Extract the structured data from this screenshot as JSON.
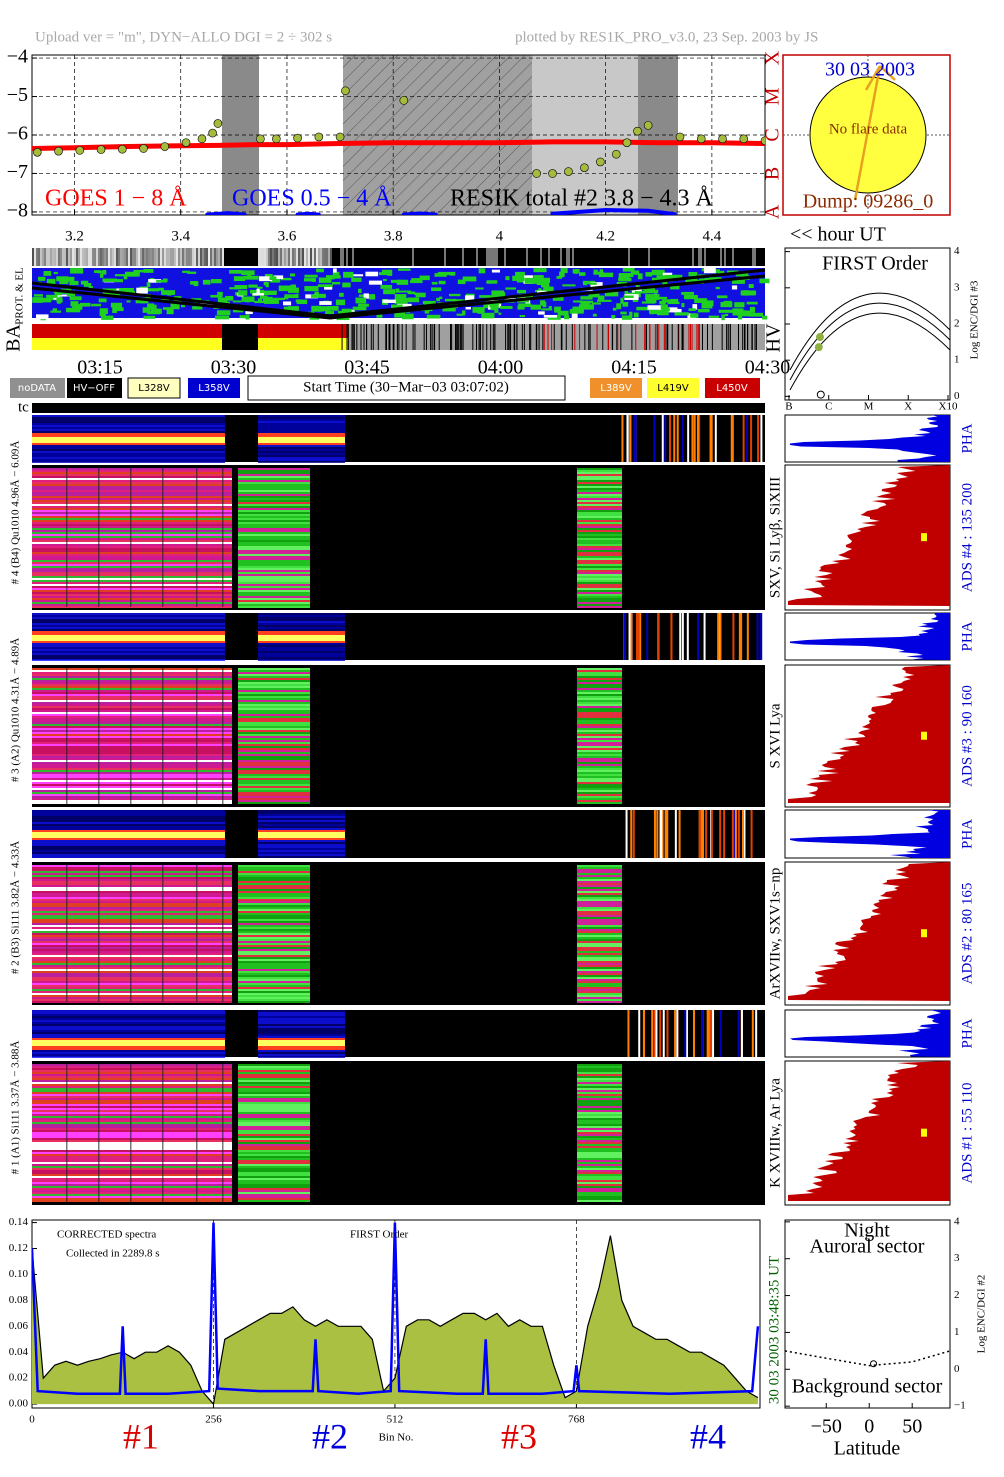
{
  "header": {
    "left": "Upload ver = \"m\", DYN−ALLO DGI =   2 ÷ 302 s",
    "right": "plotted by RES1K_PRO_v3.0, 23 Sep. 2003 by JS"
  },
  "sun": {
    "date": "30 03 2003",
    "note": "No flare data",
    "dump": "Dump: 09286_0"
  },
  "orbit": {
    "unit_label": "<< hour UT",
    "prot_label": "PROT. & EL",
    "ba_label": "BA",
    "hv_label": "HV",
    "tc_label": "tc",
    "time_labels": [
      "03:15",
      "03:30",
      "03:45",
      "04:00",
      "04:15",
      "04:30"
    ]
  },
  "controls": {
    "nodata": "noDATA",
    "hv_off": "HV−OFF",
    "l328": "L328V",
    "l358": "L358V",
    "start_time": "Start Time (30−Mar−03 03:07:02)",
    "l389": "L389V",
    "l419": "L419V",
    "l450": "L450V"
  },
  "panels": [
    {
      "left_label": "# 4 (B4) Qu1010 4.96Å − 6.09Å",
      "side_label": "SXV, Si Lyβ, SiXIII",
      "pha_label": "PHA",
      "ads_label": "ADS #4 :   135 200"
    },
    {
      "left_label": "# 3 (A2) Qu1010  4.31Å − 4.89Å",
      "side_label": "S XVI Lya",
      "pha_label": "PHA",
      "ads_label": "ADS #3 :    90 160"
    },
    {
      "left_label": "# 2 (B3) Si111  3.82Å − 4.33Å",
      "side_label": "ArXVIIw, SXV1s−np",
      "pha_label": "PHA",
      "ads_label": "ADS #2 :    80 165"
    },
    {
      "left_label": "# 1 (A1) Si111  3.37Å − 3.88Å",
      "side_label": "K XVIIIw, Ar Lya",
      "pha_label": "PHA",
      "ads_label": "ADS #1 :    55 110"
    }
  ],
  "chart_data": [
    {
      "type": "line",
      "grid": true,
      "xlim": [
        3.12,
        4.5
      ],
      "xticks": [
        3.2,
        3.4,
        3.6,
        3.8,
        4.0,
        4.2,
        4.4
      ],
      "ylim": [
        -8.08,
        -3.92
      ],
      "yticks": [
        {
          "value": -4,
          "label": "−4"
        },
        {
          "value": -5,
          "label": "−5"
        },
        {
          "value": -6,
          "label": "−6"
        },
        {
          "value": -7,
          "label": "−7"
        },
        {
          "value": -8,
          "label": "−8"
        }
      ],
      "y2lim": [
        -8.08,
        -3.92
      ],
      "y2ticks": [
        {
          "value": -8,
          "label": "A"
        },
        {
          "value": -7,
          "label": "B"
        },
        {
          "value": -6,
          "label": "C"
        },
        {
          "value": -5,
          "label": "M"
        },
        {
          "value": -4,
          "label": "X"
        }
      ],
      "series": [
        {
          "name": "GOES 1 − 8 Å",
          "color": "#ff0000",
          "mark": "line",
          "x": [
            3.12,
            3.2,
            3.3,
            3.4,
            3.47,
            3.54,
            3.6,
            3.7,
            3.8,
            3.9,
            4.0,
            4.1,
            4.2,
            4.3,
            4.4,
            4.5
          ],
          "values": [
            -6.35,
            -6.33,
            -6.3,
            -6.28,
            -6.27,
            -6.25,
            -6.25,
            -6.22,
            -6.2,
            -6.2,
            -6.2,
            -6.18,
            -6.18,
            -6.2,
            -6.2,
            -6.22
          ]
        },
        {
          "name": "GOES 0.5 − 4 Å",
          "color": "#0000ff",
          "mark": "line",
          "x": [
            3.45,
            3.49,
            3.52,
            3.53,
            3.62,
            3.64,
            3.66,
            3.67,
            3.82,
            3.85,
            3.88,
            3.89,
            4.1,
            4.2,
            4.28,
            4.33
          ],
          "values": [
            -8.07,
            -8.03,
            -8.07,
            null,
            -8.07,
            -8.05,
            -8.07,
            null,
            -8.07,
            -8.04,
            -8.07,
            null,
            -8.05,
            -7.95,
            -7.97,
            -8.06
          ]
        },
        {
          "name": "RESIK total #2  3.8 − 4.3 Å",
          "color": "#000000",
          "fill": "#a4bb3c",
          "mark": "dots",
          "x": [
            3.13,
            3.17,
            3.21,
            3.25,
            3.29,
            3.33,
            3.37,
            3.41,
            3.44,
            3.46,
            3.47,
            3.55,
            3.58,
            3.62,
            3.66,
            3.7,
            3.71,
            3.82,
            4.07,
            4.1,
            4.13,
            4.16,
            4.19,
            4.22,
            4.24,
            4.26,
            4.28,
            4.34,
            4.38,
            4.42,
            4.46,
            4.5
          ],
          "values": [
            -6.45,
            -6.42,
            -6.4,
            -6.38,
            -6.37,
            -6.35,
            -6.3,
            -6.2,
            -6.1,
            -5.95,
            -5.7,
            -6.1,
            -6.1,
            -6.08,
            -6.05,
            -6.05,
            -4.85,
            -5.1,
            -7.0,
            -7.0,
            -6.95,
            -6.85,
            -6.7,
            -6.5,
            -6.2,
            -5.9,
            -5.75,
            -6.05,
            -6.1,
            -6.1,
            -6.1,
            -6.15
          ]
        }
      ]
    },
    {
      "type": "scatter",
      "title": "FIRST Order",
      "y_label": "Log ENC/DGI #3",
      "xlim": [
        -0.1,
        4.05
      ],
      "xticks": [
        {
          "value": 0,
          "label": "B"
        },
        {
          "value": 1,
          "label": "C"
        },
        {
          "value": 2,
          "label": "M"
        },
        {
          "value": 3,
          "label": "X"
        },
        {
          "value": 4,
          "label": "X10"
        }
      ],
      "ylim": [
        -0.1,
        4.1
      ],
      "yticks": [
        0,
        1,
        2,
        3,
        4
      ],
      "series": [
        {
          "color": "#8fb040",
          "x": [
            0.75,
            0.78
          ],
          "values": [
            1.36,
            1.64
          ]
        },
        {
          "color": "#000000",
          "x": [
            0.8
          ],
          "values": [
            0.05
          ]
        }
      ]
    },
    {
      "type": "area",
      "title": "CORRECTED spectra",
      "subtitle": "Collected in  2289.8 s",
      "annotation": "FIRST Order",
      "x_label": "Bin No.",
      "time_label": "30 03 2003     03:48:35 UT",
      "section_labels": [
        {
          "text": "#1",
          "color": "#dd0000"
        },
        {
          "text": "#2",
          "color": "#0000dd"
        },
        {
          "text": "#3",
          "color": "#dd0000"
        },
        {
          "text": "#4",
          "color": "#0000dd"
        }
      ],
      "xlim": [
        0,
        1027
      ],
      "xticks": [
        0,
        256,
        512,
        768
      ],
      "ylim": [
        -0.003,
        0.142
      ],
      "yticks": [
        {
          "value": 0,
          "label": "0.00"
        },
        {
          "value": 0.02,
          "label": "0.02"
        },
        {
          "value": 0.04,
          "label": "0.04"
        },
        {
          "value": 0.06,
          "label": "0.06"
        },
        {
          "value": 0.08,
          "label": "0.08"
        },
        {
          "value": 0.1,
          "label": "0.10"
        },
        {
          "value": 0.12,
          "label": "0.12"
        },
        {
          "value": 0.14,
          "label": "0.14"
        }
      ],
      "series": [
        {
          "color": "#000000",
          "fill": "#a9c043",
          "x": [
            0,
            16,
            32,
            48,
            64,
            80,
            96,
            112,
            128,
            144,
            160,
            176,
            192,
            208,
            224,
            240,
            256,
            272,
            288,
            304,
            320,
            336,
            352,
            368,
            384,
            400,
            416,
            432,
            448,
            464,
            480,
            496,
            512,
            528,
            544,
            560,
            576,
            592,
            608,
            624,
            640,
            656,
            672,
            688,
            704,
            720,
            736,
            752,
            768,
            784,
            800,
            816,
            832,
            848,
            864,
            880,
            896,
            912,
            928,
            944,
            960,
            976,
            992,
            1008,
            1024
          ],
          "values": [
            0.12,
            0.02,
            0.03,
            0.033,
            0.03,
            0.033,
            0.035,
            0.038,
            0.04,
            0.035,
            0.04,
            0.04,
            0.045,
            0.04,
            0.03,
            0.01,
            0.0,
            0.05,
            0.055,
            0.06,
            0.065,
            0.07,
            0.07,
            0.075,
            0.065,
            0.06,
            0.065,
            0.06,
            0.06,
            0.06,
            0.05,
            0.01,
            0.02,
            0.06,
            0.065,
            0.065,
            0.06,
            0.065,
            0.07,
            0.07,
            0.065,
            0.07,
            0.06,
            0.065,
            0.06,
            0.06,
            0.03,
            0.005,
            0.01,
            0.06,
            0.09,
            0.13,
            0.08,
            0.06,
            0.055,
            0.05,
            0.05,
            0.045,
            0.04,
            0.04,
            0.035,
            0.03,
            0.02,
            0.01,
            0.005
          ]
        },
        {
          "color": "#0000ff",
          "x": [
            0,
            8,
            64,
            124,
            128,
            132,
            192,
            250,
            256,
            262,
            320,
            396,
            400,
            404,
            460,
            506,
            512,
            518,
            600,
            636,
            640,
            644,
            720,
            764,
            768,
            772,
            900,
            1016,
            1024
          ],
          "values": [
            0.12,
            0.01,
            0.008,
            0.008,
            0.06,
            0.008,
            0.008,
            0.01,
            0.14,
            0.012,
            0.01,
            0.01,
            0.05,
            0.01,
            0.008,
            0.01,
            0.14,
            0.01,
            0.008,
            0.008,
            0.05,
            0.008,
            0.008,
            0.01,
            0.03,
            0.01,
            0.008,
            0.01,
            0.06
          ]
        }
      ]
    },
    {
      "type": "line",
      "title": "Night",
      "subtitle": "Auroral sector",
      "annotation": "Background sector",
      "x_label": "Latitude",
      "y_label": "Log ENC/DGI #2",
      "xlim": [
        -98,
        94
      ],
      "xticks": [
        {
          "value": -50,
          "label": "−50"
        },
        0,
        50
      ],
      "ylim": [
        -1.05,
        4.05
      ],
      "yticks": [
        {
          "value": -1,
          "label": "−1"
        },
        0,
        1,
        2,
        3,
        4
      ],
      "series": [
        {
          "color": "#000000",
          "mark": "dotted",
          "x": [
            -98,
            -50,
            0,
            50,
            94
          ],
          "values": [
            0.5,
            0.3,
            0.1,
            0.2,
            0.5
          ]
        },
        {
          "color": "#000000",
          "mark": "dots",
          "x": [
            5
          ],
          "values": [
            0.15
          ]
        }
      ]
    }
  ]
}
